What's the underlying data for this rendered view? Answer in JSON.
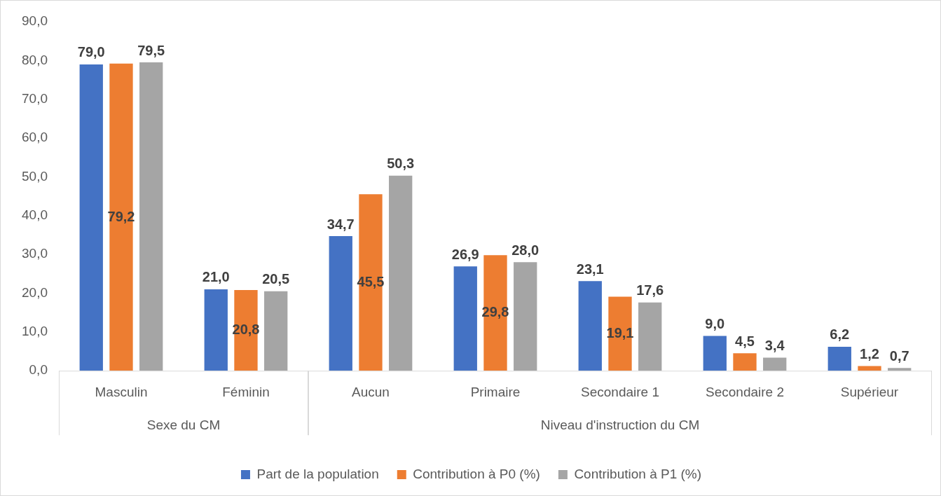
{
  "chart_data": {
    "type": "bar",
    "categories": [
      "Masculin",
      "Féminin",
      "Aucun",
      "Primaire",
      "Secondaire 1",
      "Secondaire 2",
      "Supérieur"
    ],
    "annotations": [
      "Sexe du CM",
      "Niveau d'instruction du CM"
    ],
    "series": [
      {
        "name": "Part de la population",
        "color": "#4472c4",
        "values": [
          79.0,
          21.0,
          34.7,
          26.9,
          23.1,
          9.0,
          6.2
        ],
        "value_labels": [
          "79,0",
          "21,0",
          "34,7",
          "26,9",
          "23,1",
          "9,0",
          "6,2"
        ]
      },
      {
        "name": "Contribution à P0 (%)",
        "color": "#ed7d31",
        "values": [
          79.2,
          20.8,
          45.5,
          29.8,
          19.1,
          4.5,
          1.2
        ],
        "value_labels": [
          "79,2",
          "20,8",
          "45,5",
          "29,8",
          "19,1",
          "4,5",
          "1,2"
        ]
      },
      {
        "name": "Contribution à P1 (%)",
        "color": "#a5a5a5",
        "values": [
          79.5,
          20.5,
          50.3,
          28.0,
          17.6,
          3.4,
          0.7
        ],
        "value_labels": [
          "79,5",
          "20,5",
          "50,3",
          "28,0",
          "17,6",
          "3,4",
          "0,7"
        ]
      }
    ],
    "ylim": [
      0,
      90
    ],
    "yticks": [
      {
        "value": 0,
        "label": "0,0"
      },
      {
        "value": 10,
        "label": "10,0"
      },
      {
        "value": 20,
        "label": "20,0"
      },
      {
        "value": 30,
        "label": "30,0"
      },
      {
        "value": 40,
        "label": "40,0"
      },
      {
        "value": 50,
        "label": "50,0"
      },
      {
        "value": 60,
        "label": "60,0"
      },
      {
        "value": 70,
        "label": "70,0"
      },
      {
        "value": 80,
        "label": "80,0"
      },
      {
        "value": 90,
        "label": "90,0"
      }
    ],
    "grid": false,
    "legend": "bottom"
  }
}
